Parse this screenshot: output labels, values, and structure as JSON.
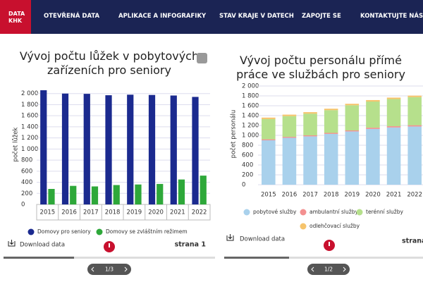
{
  "header": {
    "logo": [
      "DATA",
      "KHK"
    ],
    "nav": [
      "OTEVŘENÁ DATA",
      "APLIKACE A INFOGRAFIKY",
      "STAV KRAJE V DATECH",
      "ZAPOJTE SE",
      "KONTAKTUJTE NÁS"
    ]
  },
  "chart_data": [
    {
      "type": "bar",
      "title": "Vývoj počtu lůžek v pobytových zařízeních pro seniory",
      "y_label": "počet lůžek",
      "categories": [
        "2015",
        "2016",
        "2017",
        "2018",
        "2019",
        "2020",
        "2021",
        "2022"
      ],
      "series": [
        {
          "name": "Domovy pro seniory",
          "color": "#1b2a8f",
          "values": [
            2060,
            2000,
            1995,
            1970,
            1980,
            1975,
            1965,
            1940
          ]
        },
        {
          "name": "Domovy se zvláštním režimem",
          "color": "#2ea83a",
          "values": [
            280,
            335,
            325,
            350,
            360,
            370,
            450,
            520
          ]
        }
      ],
      "ylim": [
        0,
        2200
      ],
      "yticks": [
        0,
        200,
        400,
        600,
        800,
        {
          "value": 1000,
          "label": "1 000"
        },
        {
          "value": 1200,
          "label": "1 200"
        },
        {
          "value": 1400,
          "label": "1 400"
        },
        {
          "value": 1600,
          "label": "1 600"
        },
        {
          "value": 1800,
          "label": "1 800"
        },
        {
          "value": 2000,
          "label": "2 000"
        }
      ],
      "grid": true
    },
    {
      "type": "bar",
      "stacked": true,
      "title": "Vývoj počtu personálu přímé práce ve službách pro seniory",
      "y_label": "počet personálu",
      "categories": [
        "2015",
        "2016",
        "2017",
        "2018",
        "2019",
        "2020",
        "2021",
        "2022"
      ],
      "series": [
        {
          "name": "pobytové služby",
          "color": "#a9d1ec",
          "values": [
            900,
            950,
            980,
            1030,
            1080,
            1130,
            1160,
            1180
          ]
        },
        {
          "name": "ambulantní služby",
          "color": "#f39090",
          "values": [
            20,
            20,
            20,
            20,
            20,
            25,
            25,
            25
          ]
        },
        {
          "name": "terénní služby",
          "color": "#b6e08c",
          "values": [
            410,
            420,
            440,
            460,
            510,
            530,
            550,
            570
          ]
        },
        {
          "name": "odlehčovací služby",
          "color": "#f6c46c",
          "values": [
            30,
            30,
            30,
            30,
            30,
            30,
            30,
            30
          ]
        }
      ],
      "ylim": [
        0,
        2000
      ],
      "yticks": [
        0,
        200,
        400,
        600,
        800,
        {
          "value": 1000,
          "label": "1 000"
        },
        {
          "value": 1200,
          "label": "1 200"
        },
        {
          "value": 1400,
          "label": "1 400"
        },
        {
          "value": 1600,
          "label": "1 600"
        },
        {
          "value": 1800,
          "label": "1 800"
        },
        {
          "value": 2000,
          "label": "2 000"
        }
      ],
      "grid": true
    }
  ],
  "cards": [
    {
      "download": "Download data",
      "page": "strana 1",
      "pager": "1/3"
    },
    {
      "download": "Download data",
      "page": "strana",
      "pager": "1/2"
    }
  ]
}
